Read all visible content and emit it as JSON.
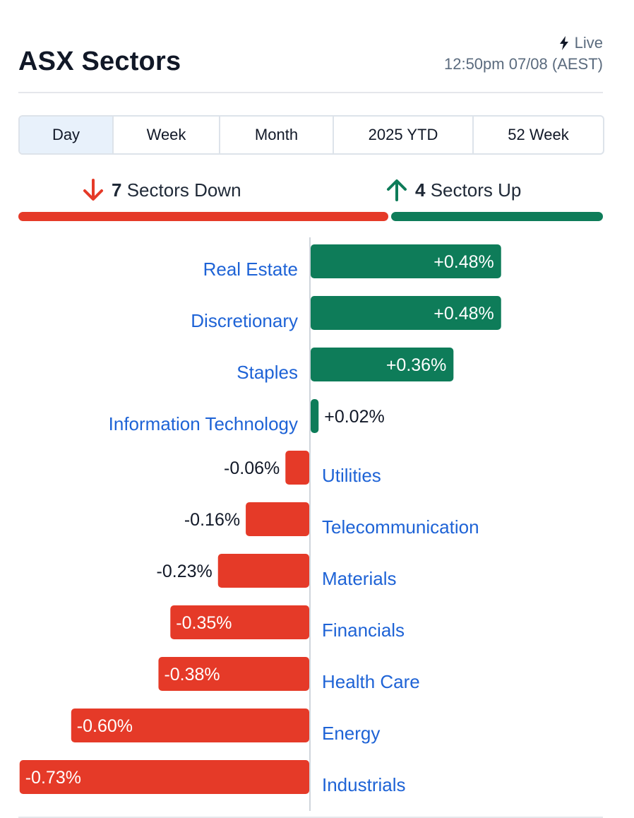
{
  "header": {
    "title": "ASX Sectors",
    "live_label": "Live",
    "timestamp": "12:50pm 07/08 (AEST)"
  },
  "tabs": [
    {
      "label": "Day",
      "active": true
    },
    {
      "label": "Week",
      "active": false
    },
    {
      "label": "Month",
      "active": false
    },
    {
      "label": "2025 YTD",
      "active": false
    },
    {
      "label": "52 Week",
      "active": false
    }
  ],
  "summary": {
    "down_count": "7",
    "down_label": "Sectors Down",
    "up_count": "4",
    "up_label": "Sectors Up"
  },
  "colors": {
    "positive": "#0e7c59",
    "negative": "#e53a28",
    "link": "#1e63d6",
    "axis": "#cfd5dc"
  },
  "icons": {
    "live": "lightning-bolt-icon",
    "down": "arrow-down-icon",
    "up": "arrow-up-icon"
  },
  "chart_data": {
    "type": "bar",
    "orientation": "horizontal",
    "categories": [
      "Real Estate",
      "Discretionary",
      "Staples",
      "Information Technology",
      "Utilities",
      "Telecommunication",
      "Materials",
      "Financials",
      "Health Care",
      "Energy",
      "Industrials"
    ],
    "values": [
      0.48,
      0.48,
      0.36,
      0.02,
      -0.06,
      -0.16,
      -0.23,
      -0.35,
      -0.38,
      -0.6,
      -0.73
    ],
    "value_labels": [
      "+0.48%",
      "+0.48%",
      "+0.36%",
      "+0.02%",
      "-0.06%",
      "-0.16%",
      "-0.23%",
      "-0.35%",
      "-0.38%",
      "-0.60%",
      "-0.73%"
    ],
    "unit": "%"
  }
}
